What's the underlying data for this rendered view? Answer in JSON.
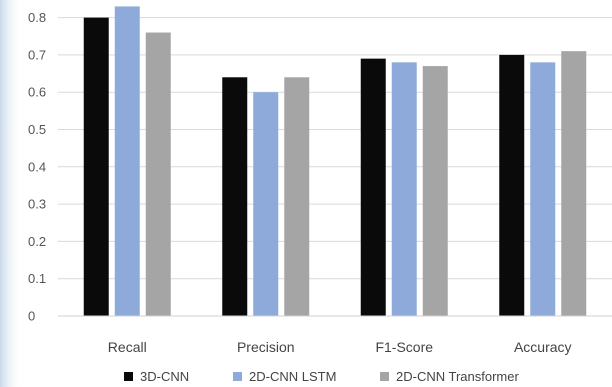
{
  "chart_data": {
    "type": "bar",
    "categories": [
      "Recall",
      "Precision",
      "F1-Score",
      "Accuracy"
    ],
    "series": [
      {
        "name": "3D-CNN",
        "color": "#0a0a0a",
        "values": [
          0.8,
          0.64,
          0.69,
          0.7
        ]
      },
      {
        "name": "2D-CNN LSTM",
        "color": "#8eaadb",
        "values": [
          0.83,
          0.6,
          0.68,
          0.68
        ]
      },
      {
        "name": "2D-CNN Transformer",
        "color": "#a5a5a5",
        "values": [
          0.76,
          0.64,
          0.67,
          0.71
        ]
      }
    ],
    "y_ticks": [
      "0",
      "0.1",
      "0.2",
      "0.3",
      "0.4",
      "0.5",
      "0.6",
      "0.7",
      "0.8"
    ],
    "ylim": [
      0,
      0.85
    ],
    "grid": true,
    "legend_position": "bottom",
    "title": "",
    "xlabel": "",
    "ylabel": ""
  }
}
